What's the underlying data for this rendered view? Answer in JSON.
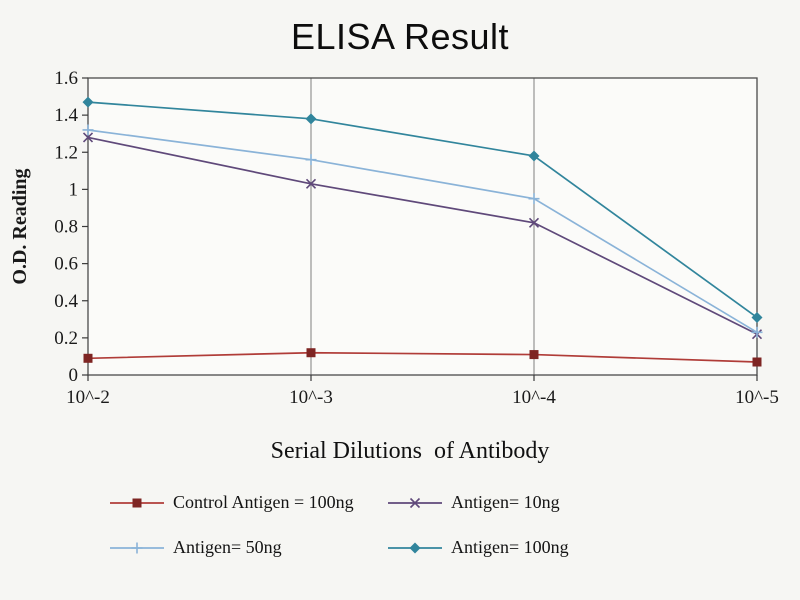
{
  "chart_data": {
    "type": "line",
    "title": "ELISA Result",
    "xlabel": "Serial Dilutions  of Antibody",
    "ylabel": "O.D. Reading",
    "categories": [
      "10^-2",
      "10^-3",
      "10^-4",
      "10^-5"
    ],
    "ylim": [
      0,
      1.6
    ],
    "ytick_step": 0.2,
    "ytick_labels": [
      "0",
      "0.2",
      "0.4",
      "0.6",
      "0.8",
      "1",
      "1.2",
      "1.4",
      "1.6"
    ],
    "grid": "vertical-only",
    "legend_position": "bottom",
    "plot_border_color": "#4a4a4a",
    "gridline_color": "#7f7f7f",
    "series": [
      {
        "name": "Control Antigen = 100ng",
        "marker": "square",
        "color": "#b03c38",
        "marker_color": "#7e2523",
        "values": [
          0.09,
          0.12,
          0.11,
          0.07
        ]
      },
      {
        "name": "Antigen= 10ng",
        "marker": "x",
        "color": "#5f497a",
        "marker_color": "#5f497a",
        "values": [
          1.28,
          1.03,
          0.82,
          0.22
        ]
      },
      {
        "name": "Antigen= 50ng",
        "marker": "plus",
        "color": "#8ab3d8",
        "marker_color": "#8ab3d8",
        "values": [
          1.32,
          1.16,
          0.95,
          0.23
        ]
      },
      {
        "name": "Antigen= 100ng",
        "marker": "diamond",
        "color": "#31859c",
        "marker_color": "#31859c",
        "values": [
          1.47,
          1.38,
          1.18,
          0.31
        ]
      }
    ]
  }
}
